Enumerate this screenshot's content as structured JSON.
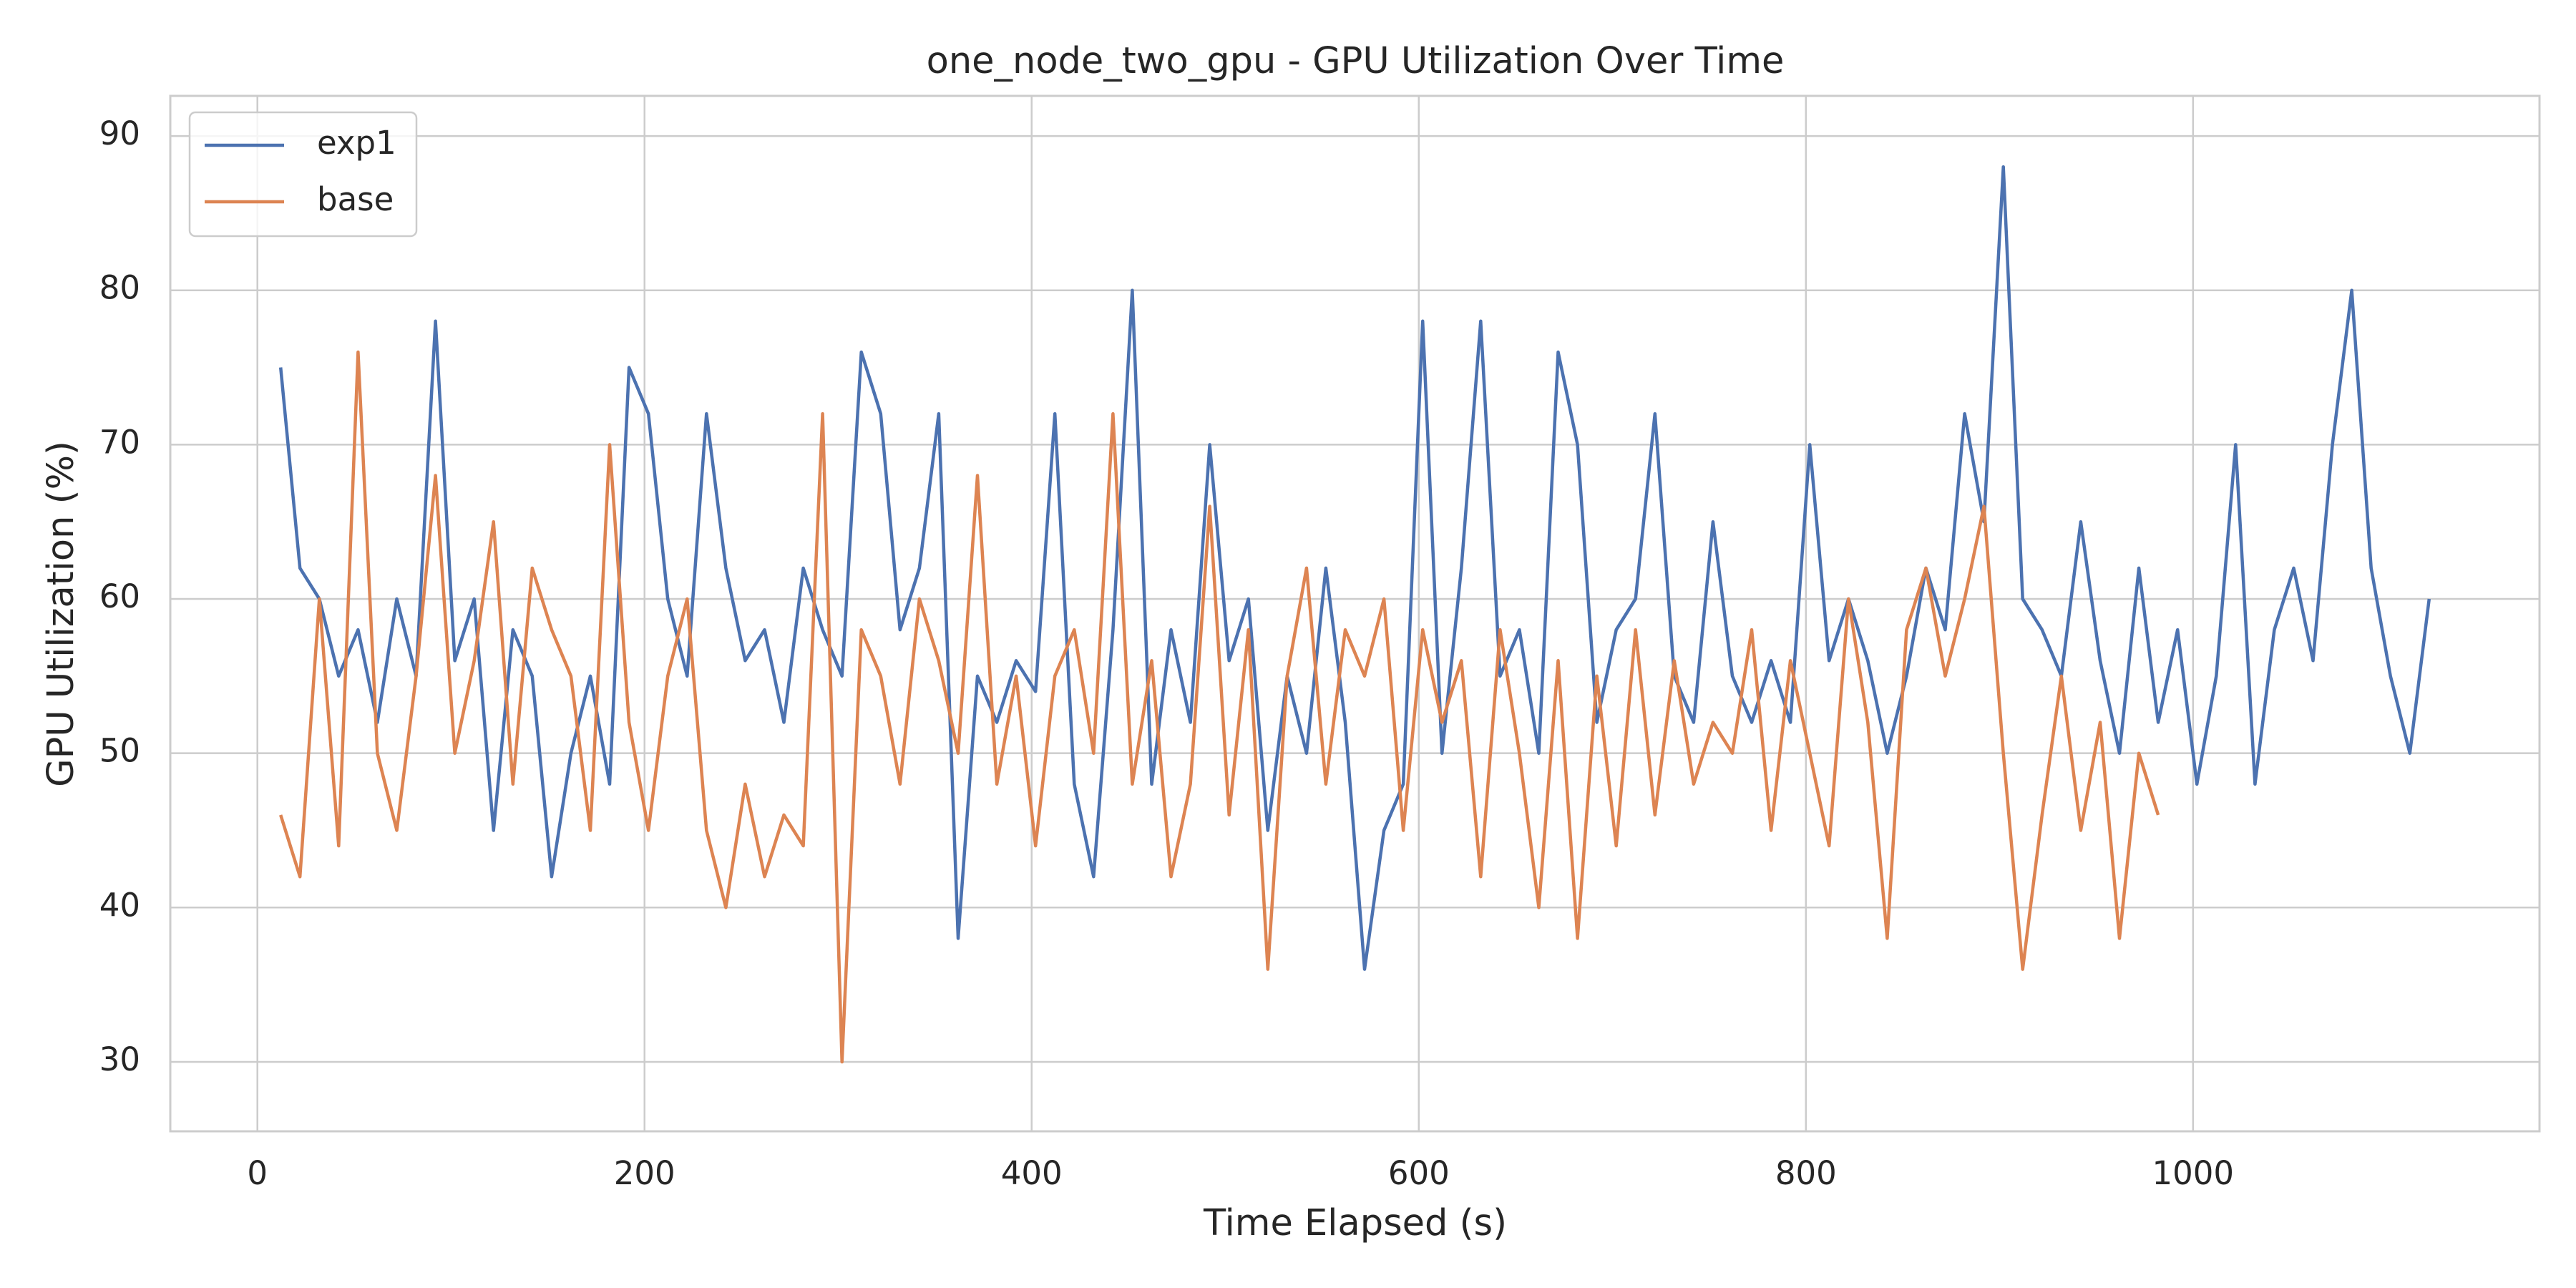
{
  "chart_data": {
    "type": "line",
    "title": "one_node_two_gpu - GPU Utilization Over Time",
    "xlabel": "Time Elapsed (s)",
    "ylabel": "GPU Utilization (%)",
    "x": [
      12,
      22,
      32,
      42,
      52,
      62,
      72,
      82,
      92,
      102,
      112,
      122,
      132,
      142,
      152,
      162,
      172,
      182,
      192,
      202,
      212,
      222,
      232,
      242,
      252,
      262,
      272,
      282,
      292,
      302,
      312,
      322,
      332,
      342,
      352,
      362,
      372,
      382,
      392,
      402,
      412,
      422,
      432,
      442,
      452,
      462,
      472,
      482,
      492,
      502,
      512,
      522,
      532,
      542,
      552,
      562,
      572,
      582,
      592,
      602,
      612,
      622,
      632,
      642,
      652,
      662,
      672,
      682,
      692,
      702,
      712,
      722,
      732,
      742,
      752,
      762,
      772,
      782,
      792,
      802,
      812,
      822,
      832,
      842,
      852,
      862,
      872,
      882,
      892,
      902,
      912,
      922,
      932,
      942,
      952,
      962,
      972,
      982,
      992,
      1002,
      1012,
      1022,
      1032,
      1042,
      1052,
      1062,
      1072,
      1082,
      1092,
      1102,
      1112,
      1122
    ],
    "series": [
      {
        "name": "exp1",
        "color": "#4c72b0",
        "values": [
          75,
          62,
          60,
          55,
          58,
          52,
          60,
          55,
          78,
          56,
          60,
          45,
          58,
          55,
          42,
          50,
          55,
          48,
          75,
          72,
          60,
          55,
          72,
          62,
          56,
          58,
          52,
          62,
          58,
          55,
          76,
          72,
          58,
          62,
          72,
          38,
          55,
          52,
          56,
          54,
          72,
          48,
          42,
          58,
          80,
          48,
          58,
          52,
          70,
          56,
          60,
          45,
          55,
          50,
          62,
          52,
          36,
          45,
          48,
          78,
          50,
          62,
          78,
          55,
          58,
          50,
          76,
          70,
          52,
          58,
          60,
          72,
          55,
          52,
          65,
          55,
          52,
          56,
          52,
          70,
          56,
          60,
          56,
          50,
          55,
          62,
          58,
          72,
          65,
          88,
          60,
          58,
          55,
          65,
          56,
          50,
          62,
          52,
          58,
          48,
          55,
          70,
          48,
          58,
          62,
          56,
          70,
          80,
          62,
          55,
          50,
          60
        ]
      },
      {
        "name": "base",
        "color": "#dd8452",
        "values": [
          46,
          42,
          60,
          44,
          76,
          50,
          45,
          55,
          68,
          50,
          56,
          65,
          48,
          62,
          58,
          55,
          45,
          70,
          52,
          45,
          55,
          60,
          45,
          40,
          48,
          42,
          46,
          44,
          72,
          30,
          58,
          55,
          48,
          60,
          56,
          50,
          68,
          48,
          55,
          44,
          55,
          58,
          50,
          72,
          48,
          56,
          42,
          48,
          66,
          46,
          58,
          36,
          55,
          62,
          48,
          58,
          55,
          60,
          45,
          58,
          52,
          56,
          42,
          58,
          50,
          40,
          56,
          38,
          55,
          44,
          58,
          46,
          56,
          48,
          52,
          50,
          58,
          45,
          56,
          50,
          44,
          60,
          52,
          38,
          58,
          62,
          55,
          60,
          66,
          50,
          36,
          46,
          55,
          45,
          52,
          38,
          50,
          46,
          null,
          null,
          null,
          null,
          null,
          null,
          null,
          null,
          null,
          null,
          null,
          null,
          null,
          null
        ]
      }
    ],
    "xlim": [
      -45,
      1179
    ],
    "ylim": [
      25.5,
      92.6
    ],
    "xticks": [
      0,
      200,
      400,
      600,
      800,
      1000
    ],
    "yticks": [
      30,
      40,
      50,
      60,
      70,
      80,
      90
    ],
    "grid": true,
    "legend": "upper left"
  }
}
